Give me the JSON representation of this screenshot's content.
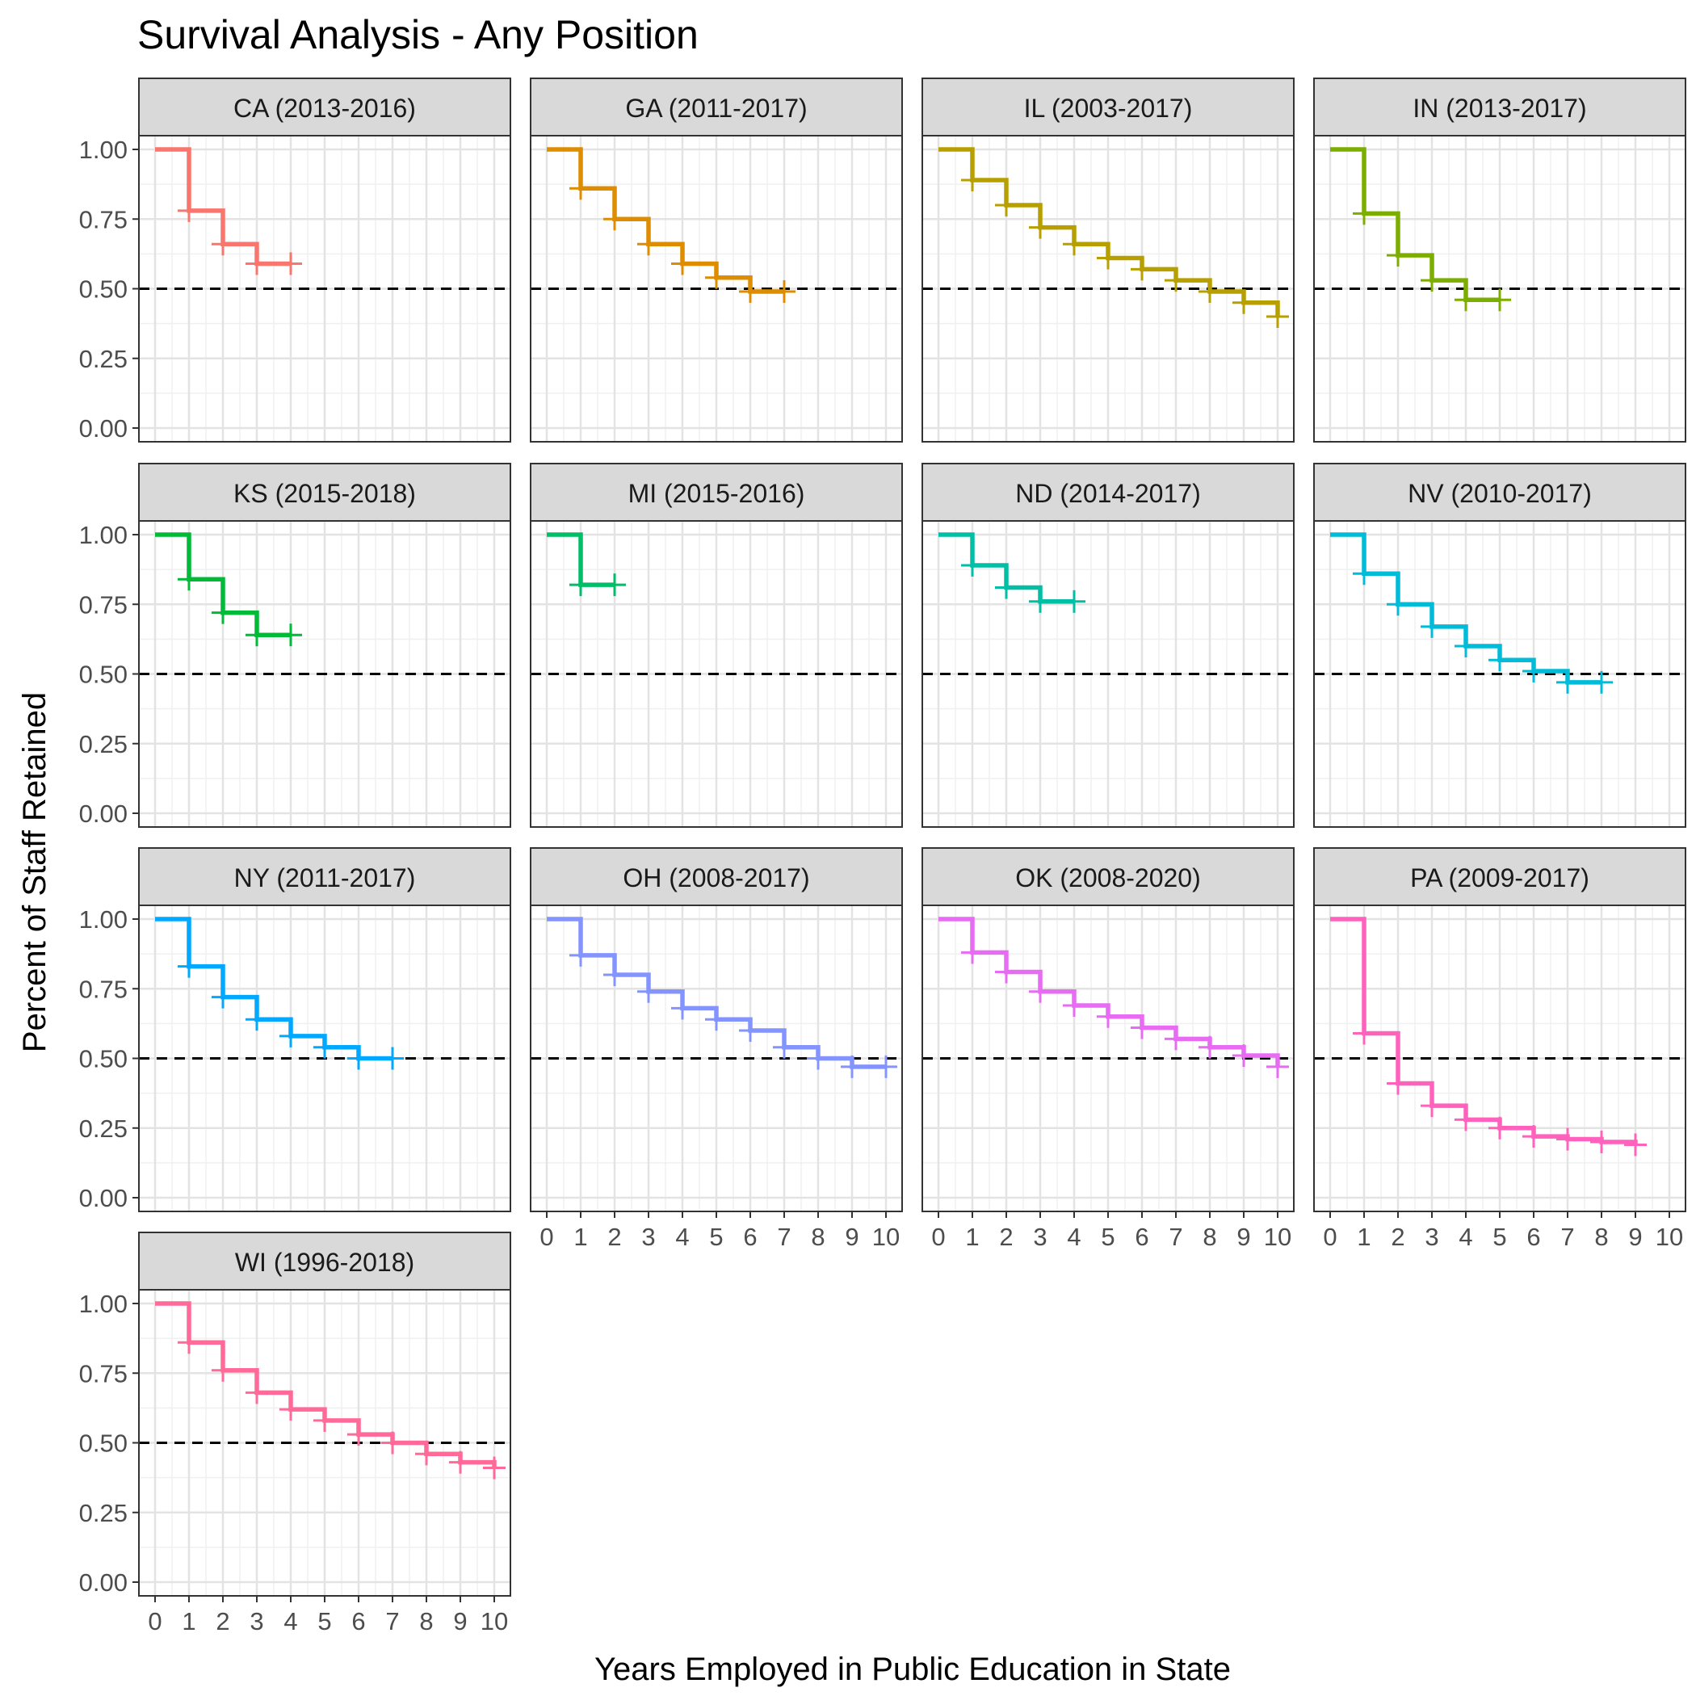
{
  "chart_data": {
    "type": "line",
    "title": "Survival Analysis - Any Position",
    "xlabel": "Years Employed in Public Education in State",
    "ylabel": "Percent of Staff Retained",
    "xlim": [
      0,
      10
    ],
    "ylim": [
      0,
      1
    ],
    "x_ticks": [
      "0",
      "1",
      "2",
      "3",
      "4",
      "5",
      "6",
      "7",
      "8",
      "9",
      "10"
    ],
    "y_ticks": [
      "0.00",
      "0.25",
      "0.50",
      "0.75",
      "1.00"
    ],
    "reference_line": {
      "y": 0.5,
      "style": "dashed"
    },
    "grid": true,
    "legend": "none",
    "series": [
      {
        "name": "CA (2013-2016)",
        "color": "#F8766D",
        "x": [
          0,
          1,
          2,
          3,
          4
        ],
        "y": [
          1.0,
          0.78,
          0.66,
          0.59,
          0.59
        ]
      },
      {
        "name": "GA (2011-2017)",
        "color": "#DE8C00",
        "x": [
          0,
          1,
          2,
          3,
          4,
          5,
          6,
          7
        ],
        "y": [
          1.0,
          0.86,
          0.75,
          0.66,
          0.59,
          0.54,
          0.49,
          0.49
        ]
      },
      {
        "name": "IL (2003-2017)",
        "color": "#B79F00",
        "x": [
          0,
          1,
          2,
          3,
          4,
          5,
          6,
          7,
          8,
          9,
          10
        ],
        "y": [
          1.0,
          0.89,
          0.8,
          0.72,
          0.66,
          0.61,
          0.57,
          0.53,
          0.49,
          0.45,
          0.4
        ]
      },
      {
        "name": "IN (2013-2017)",
        "color": "#7CAE00",
        "x": [
          0,
          1,
          2,
          3,
          4,
          5
        ],
        "y": [
          1.0,
          0.77,
          0.62,
          0.53,
          0.46,
          0.46
        ]
      },
      {
        "name": "KS (2015-2018)",
        "color": "#00BA38",
        "x": [
          0,
          1,
          2,
          3,
          4
        ],
        "y": [
          1.0,
          0.84,
          0.72,
          0.64,
          0.64
        ]
      },
      {
        "name": "MI (2015-2016)",
        "color": "#00BE67",
        "x": [
          0,
          1,
          2
        ],
        "y": [
          1.0,
          0.82,
          0.82
        ]
      },
      {
        "name": "ND (2014-2017)",
        "color": "#00BFA4",
        "x": [
          0,
          1,
          2,
          3,
          4
        ],
        "y": [
          1.0,
          0.89,
          0.81,
          0.76,
          0.76
        ]
      },
      {
        "name": "NV (2010-2017)",
        "color": "#00BCD8",
        "x": [
          0,
          1,
          2,
          3,
          4,
          5,
          6,
          7,
          8
        ],
        "y": [
          1.0,
          0.86,
          0.75,
          0.67,
          0.6,
          0.55,
          0.51,
          0.47,
          0.47
        ]
      },
      {
        "name": "NY (2011-2017)",
        "color": "#00A9FF",
        "x": [
          0,
          1,
          2,
          3,
          4,
          5,
          6,
          7
        ],
        "y": [
          1.0,
          0.83,
          0.72,
          0.64,
          0.58,
          0.54,
          0.5,
          0.5
        ]
      },
      {
        "name": "OH (2008-2017)",
        "color": "#8494FF",
        "x": [
          0,
          1,
          2,
          3,
          4,
          5,
          6,
          7,
          8,
          9,
          10
        ],
        "y": [
          1.0,
          0.87,
          0.8,
          0.74,
          0.68,
          0.64,
          0.6,
          0.54,
          0.5,
          0.47,
          0.47
        ]
      },
      {
        "name": "OK (2008-2020)",
        "color": "#E76BF3",
        "x": [
          0,
          1,
          2,
          3,
          4,
          5,
          6,
          7,
          8,
          9,
          10
        ],
        "y": [
          1.0,
          0.88,
          0.81,
          0.74,
          0.69,
          0.65,
          0.61,
          0.57,
          0.54,
          0.51,
          0.47
        ]
      },
      {
        "name": "PA (2009-2017)",
        "color": "#FF62BC",
        "x": [
          0,
          1,
          2,
          3,
          4,
          5,
          6,
          7,
          8,
          9
        ],
        "y": [
          1.0,
          0.59,
          0.41,
          0.33,
          0.28,
          0.25,
          0.22,
          0.21,
          0.2,
          0.19
        ]
      },
      {
        "name": "WI (1996-2018)",
        "color": "#FF6A98",
        "x": [
          0,
          1,
          2,
          3,
          4,
          5,
          6,
          7,
          8,
          9,
          10
        ],
        "y": [
          1.0,
          0.86,
          0.76,
          0.68,
          0.62,
          0.58,
          0.53,
          0.5,
          0.46,
          0.43,
          0.41
        ]
      }
    ]
  }
}
